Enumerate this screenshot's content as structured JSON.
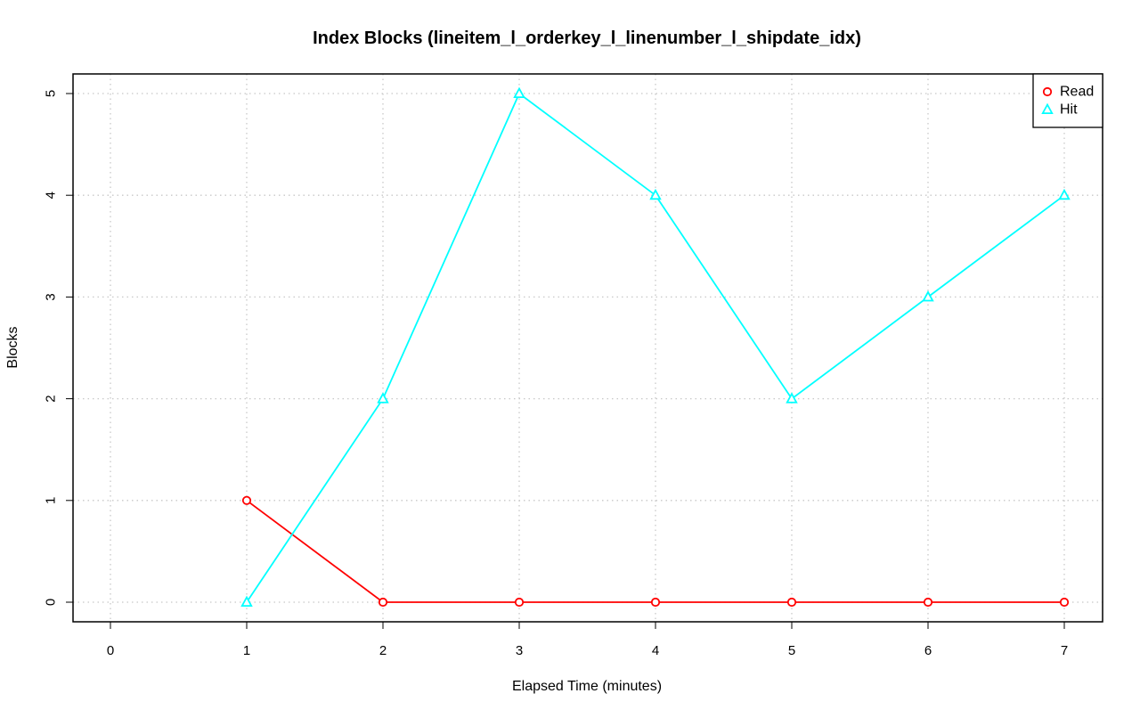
{
  "chart_data": {
    "type": "line",
    "title": "Index Blocks (lineitem_l_orderkey_l_linenumber_l_shipdate_idx)",
    "xlabel": "Elapsed Time (minutes)",
    "ylabel": "Blocks",
    "xlim": [
      0,
      7
    ],
    "ylim": [
      0,
      5
    ],
    "xticks": [
      0,
      1,
      2,
      3,
      4,
      5,
      6,
      7
    ],
    "yticks": [
      0,
      1,
      2,
      3,
      4,
      5
    ],
    "grid": true,
    "legend_position": "top-right",
    "series": [
      {
        "name": "Read",
        "color": "#ff0000",
        "marker": "circle",
        "x": [
          1,
          2,
          3,
          4,
          5,
          6,
          7
        ],
        "values": [
          1,
          0,
          0,
          0,
          0,
          0,
          0
        ]
      },
      {
        "name": "Hit",
        "color": "#00ffff",
        "marker": "triangle",
        "x": [
          1,
          2,
          3,
          4,
          5,
          6,
          7
        ],
        "values": [
          0,
          2,
          5,
          4,
          2,
          3,
          4
        ]
      }
    ]
  }
}
